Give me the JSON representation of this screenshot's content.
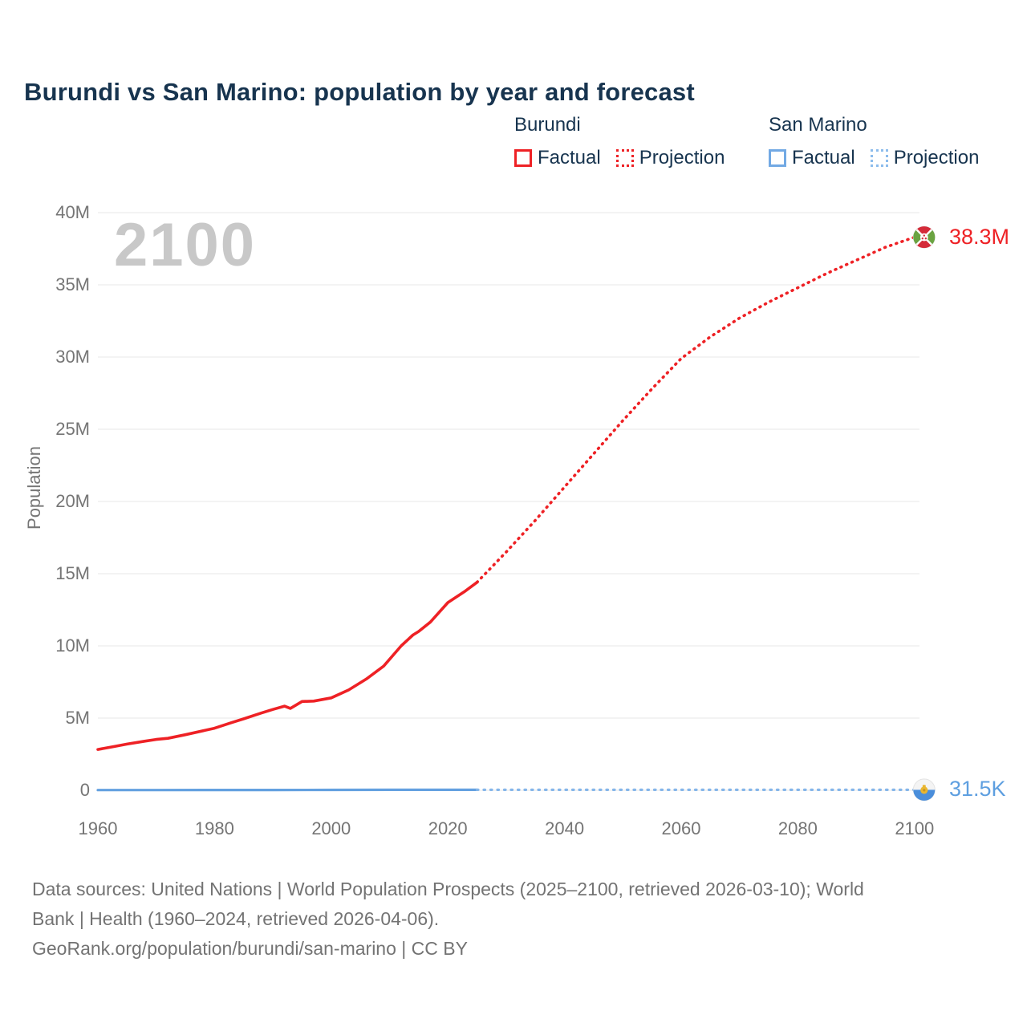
{
  "title": "Burundi vs San Marino: population by year and forecast",
  "watermark": "2100",
  "legend": {
    "groups": [
      {
        "name": "Burundi",
        "items": [
          {
            "label": "Factual",
            "style": "solid",
            "color": "#ee2125"
          },
          {
            "label": "Projection",
            "style": "dotted",
            "color": "#ee2125"
          }
        ]
      },
      {
        "name": "San Marino",
        "items": [
          {
            "label": "Factual",
            "style": "solid",
            "color": "#72a9e4"
          },
          {
            "label": "Projection",
            "style": "dotted",
            "color": "#8cbcec"
          }
        ]
      }
    ]
  },
  "axes": {
    "y": {
      "label": "Population",
      "ticks": [
        "0",
        "5M",
        "10M",
        "15M",
        "20M",
        "25M",
        "30M",
        "35M",
        "40M"
      ],
      "tick_values": [
        0,
        5,
        10,
        15,
        20,
        25,
        30,
        35,
        40
      ]
    },
    "x": {
      "ticks": [
        1960,
        1980,
        2000,
        2020,
        2040,
        2060,
        2080,
        2100
      ]
    }
  },
  "end_labels": {
    "burundi": {
      "text": "38.3M"
    },
    "san_marino": {
      "text": "31.5K"
    }
  },
  "footer": {
    "lines": [
      "Data sources: United Nations | World Population Prospects (2025–2100, retrieved 2026-03-10); World",
      "Bank | Health (1960–2024, retrieved 2026-04-06).",
      "GeoRank.org/population/burundi/san-marino | CC BY"
    ]
  },
  "colors": {
    "burundi_line": "#ee2125",
    "san_marino_line": "#64a1e0",
    "san_marino_projection_line": "#85b6ea",
    "title_navy": "#17344f",
    "axis_gray": "#757575",
    "gridline": "#ececec",
    "watermark_gray": "#c8c8c8",
    "end_label_blue": "#5e9fe0"
  },
  "chart_data": {
    "type": "line",
    "title": "Burundi vs San Marino: population by year and forecast",
    "xlabel": "",
    "ylabel": "Population",
    "x_range": [
      1960,
      2100
    ],
    "y_range_millions": [
      0,
      40
    ],
    "grid": "horizontal-only",
    "legend_position": "top-right",
    "series": [
      {
        "name": "Burundi — Factual",
        "style": "solid",
        "color": "#ee2125",
        "unit": "millions",
        "points": [
          [
            1960,
            2.83
          ],
          [
            1963,
            3.05
          ],
          [
            1965,
            3.2
          ],
          [
            1968,
            3.4
          ],
          [
            1970,
            3.52
          ],
          [
            1972,
            3.6
          ],
          [
            1975,
            3.85
          ],
          [
            1980,
            4.3
          ],
          [
            1983,
            4.7
          ],
          [
            1985,
            4.95
          ],
          [
            1988,
            5.35
          ],
          [
            1990,
            5.6
          ],
          [
            1992,
            5.83
          ],
          [
            1993,
            5.67
          ],
          [
            1995,
            6.15
          ],
          [
            1997,
            6.18
          ],
          [
            2000,
            6.4
          ],
          [
            2003,
            6.95
          ],
          [
            2006,
            7.7
          ],
          [
            2009,
            8.6
          ],
          [
            2012,
            10.0
          ],
          [
            2014,
            10.75
          ],
          [
            2015,
            11.0
          ],
          [
            2017,
            11.65
          ],
          [
            2020,
            13.0
          ],
          [
            2023,
            13.8
          ],
          [
            2025,
            14.4
          ]
        ]
      },
      {
        "name": "Burundi — Projection",
        "style": "dotted",
        "color": "#ee2125",
        "unit": "millions",
        "points": [
          [
            2025,
            14.4
          ],
          [
            2030,
            16.5
          ],
          [
            2035,
            18.7
          ],
          [
            2040,
            21.0
          ],
          [
            2045,
            23.3
          ],
          [
            2050,
            25.6
          ],
          [
            2055,
            27.8
          ],
          [
            2060,
            29.9
          ],
          [
            2065,
            31.4
          ],
          [
            2070,
            32.7
          ],
          [
            2075,
            33.8
          ],
          [
            2080,
            34.8
          ],
          [
            2085,
            35.8
          ],
          [
            2090,
            36.7
          ],
          [
            2095,
            37.6
          ],
          [
            2100,
            38.3
          ]
        ]
      },
      {
        "name": "San Marino — Factual",
        "style": "solid",
        "color": "#64a1e0",
        "unit": "millions",
        "points": [
          [
            1960,
            0.016
          ],
          [
            1970,
            0.019
          ],
          [
            1980,
            0.021
          ],
          [
            1990,
            0.024
          ],
          [
            2000,
            0.027
          ],
          [
            2010,
            0.031
          ],
          [
            2020,
            0.034
          ],
          [
            2025,
            0.034
          ]
        ]
      },
      {
        "name": "San Marino — Projection",
        "style": "dotted",
        "color": "#85b6ea",
        "unit": "millions",
        "points": [
          [
            2025,
            0.034
          ],
          [
            2040,
            0.035
          ],
          [
            2060,
            0.034
          ],
          [
            2080,
            0.033
          ],
          [
            2100,
            0.0315
          ]
        ]
      }
    ],
    "end_annotations": [
      {
        "series": "Burundi",
        "year": 2100,
        "text": "38.3M"
      },
      {
        "series": "San Marino",
        "year": 2100,
        "text": "31.5K"
      }
    ]
  }
}
